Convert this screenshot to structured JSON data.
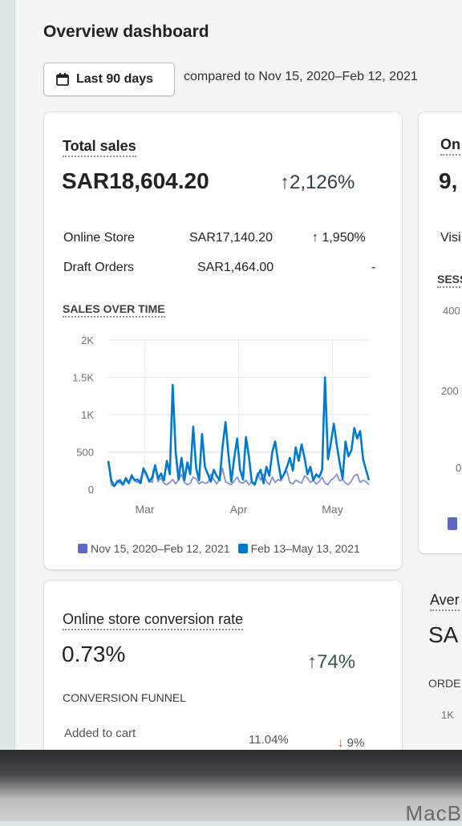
{
  "header": {
    "title": "Overview dashboard",
    "date_button_label": "Last 90 days",
    "compare_text": "compared to Nov 15, 2020–Feb 12, 2021"
  },
  "total_sales": {
    "title": "Total sales",
    "amount": "SAR18,604.20",
    "change": "2,126%",
    "rows": [
      {
        "label": "Online Store",
        "value": "SAR17,140.20",
        "change": "1,950%"
      },
      {
        "label": "Draft Orders",
        "value": "SAR1,464.00",
        "change": "-"
      }
    ],
    "chart_heading": "SALES OVER TIME"
  },
  "chart_data": {
    "type": "line",
    "title": "SALES OVER TIME",
    "xlabel": "",
    "ylabel": "",
    "ylim": [
      0,
      2000
    ],
    "y_ticks": [
      "2K",
      "1.5K",
      "1K",
      "500",
      "0"
    ],
    "x_ticks": [
      "Mar",
      "Apr",
      "May"
    ],
    "grid": true,
    "legend_placement": "bottom",
    "series": [
      {
        "name": "Nov 15, 2020–Feb 12, 2021",
        "color": "#5c6ac4",
        "values": [
          360,
          60,
          40,
          120,
          80,
          60,
          120,
          90,
          200,
          110,
          90,
          130,
          260,
          180,
          120,
          90,
          320,
          100,
          150,
          80,
          60,
          90,
          130,
          70,
          120,
          200,
          90,
          60,
          80,
          160,
          140,
          70,
          100,
          80,
          90,
          200,
          130,
          70,
          140,
          280,
          100,
          80,
          60,
          110,
          160,
          90,
          80,
          120,
          60,
          100,
          80,
          220,
          120,
          200,
          100,
          60,
          160,
          90,
          130,
          110,
          200,
          240,
          90,
          70,
          120,
          100,
          80,
          180,
          150,
          90,
          120,
          70,
          100,
          160,
          80,
          60,
          120,
          150,
          200,
          110,
          130,
          80,
          60,
          110,
          180,
          200,
          90,
          120,
          100,
          60
        ]
      },
      {
        "name": "Feb 13–May 13, 2021",
        "color": "#007ace",
        "values": [
          380,
          120,
          40,
          90,
          120,
          60,
          150,
          80,
          180,
          120,
          130,
          80,
          280,
          200,
          100,
          160,
          320,
          140,
          210,
          120,
          380,
          200,
          1400,
          500,
          130,
          420,
          120,
          360,
          200,
          840,
          280,
          120,
          740,
          300,
          200,
          100,
          260,
          180,
          120,
          560,
          900,
          480,
          100,
          420,
          680,
          260,
          130,
          700,
          440,
          100,
          60,
          180,
          260,
          80,
          300,
          180,
          500,
          640,
          360,
          140,
          200,
          300,
          420,
          250,
          560,
          380,
          600,
          420,
          200,
          300,
          120,
          200,
          160,
          260,
          1500,
          400,
          620,
          880,
          600,
          350,
          140,
          640,
          440,
          520,
          820,
          680,
          780,
          400,
          260,
          120
        ]
      }
    ]
  },
  "right_card": {
    "title_partial": "On",
    "amount_partial": "9,",
    "row_label_partial": "Visi",
    "section_partial": "SESS",
    "ticks": [
      "400",
      "200",
      "0"
    ]
  },
  "conversion": {
    "title": "Online store conversion rate",
    "value": "0.73%",
    "change": "74%",
    "funnel_heading": "CONVERSION FUNNEL",
    "rows": [
      {
        "label": "Added to cart",
        "value": "11.04%",
        "change": "9%"
      }
    ]
  },
  "avg_card": {
    "title_partial": "Aver",
    "amount_partial": "SA",
    "section_partial": "ORDE",
    "tick": "1K"
  },
  "device": {
    "brand": "MacB"
  },
  "colors": {
    "accent": "#007ace",
    "comparison": "#5c6ac4",
    "positive": "#108043",
    "negative": "#de3618"
  }
}
